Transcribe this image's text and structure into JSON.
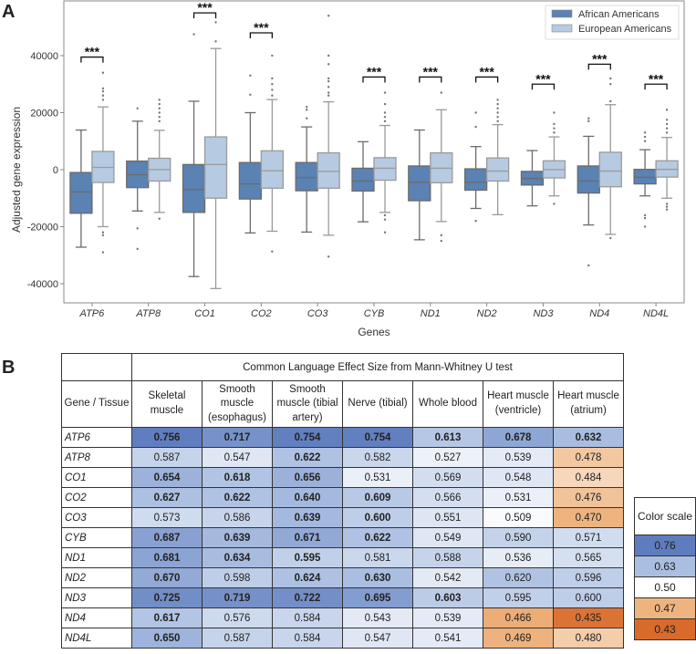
{
  "panel_a_label": "A",
  "panel_b_label": "B",
  "chart_data": {
    "type": "box",
    "xlabel": "Genes",
    "ylabel": "Adjusted gene expression",
    "ylim": [
      -46000,
      59000
    ],
    "yticks": [
      -40000,
      -20000,
      0,
      20000,
      40000
    ],
    "legend": {
      "placement": "top-right",
      "entries": [
        {
          "name": "African Americans",
          "color": "#5a82b3"
        },
        {
          "name": "European Americans",
          "color": "#b6cbe1"
        }
      ]
    },
    "significance_label": "***",
    "categories": [
      "ATP6",
      "ATP8",
      "CO1",
      "CO2",
      "CO3",
      "CYB",
      "ND1",
      "ND2",
      "ND3",
      "ND4",
      "ND4L"
    ],
    "significance_y": [
      39500,
      null,
      55000,
      48000,
      null,
      32500,
      32500,
      32500,
      30000,
      37000,
      30000
    ],
    "series": [
      {
        "name": "African Americans",
        "boxes": [
          {
            "whislo": -27200,
            "q1": -15300,
            "med": -7800,
            "q3": -1000,
            "whishi": 13900,
            "fliers": []
          },
          {
            "whislo": -14500,
            "q1": -6300,
            "med": -1800,
            "q3": 3000,
            "whishi": 17000,
            "fliers": [
              21500,
              -20600,
              -27800
            ]
          },
          {
            "whislo": -37500,
            "q1": -15000,
            "med": -7000,
            "q3": 1800,
            "whishi": 24000,
            "fliers": [
              47500
            ]
          },
          {
            "whislo": -22200,
            "q1": -10300,
            "med": -5000,
            "q3": 2500,
            "whishi": 20000,
            "fliers": [
              26300,
              33000
            ]
          },
          {
            "whislo": -21900,
            "q1": -7400,
            "med": -2800,
            "q3": 2500,
            "whishi": 15000,
            "fliers": [
              18000,
              21000,
              22000
            ]
          },
          {
            "whislo": -18300,
            "q1": -7500,
            "med": -4000,
            "q3": 500,
            "whishi": 9800,
            "fliers": []
          },
          {
            "whislo": -24600,
            "q1": -10900,
            "med": -4400,
            "q3": 1300,
            "whishi": 13900,
            "fliers": []
          },
          {
            "whislo": -13600,
            "q1": -7200,
            "med": -4400,
            "q3": 300,
            "whishi": 8100,
            "fliers": [
              15000,
              20000,
              -18000
            ]
          },
          {
            "whislo": -12700,
            "q1": -5400,
            "med": -3100,
            "q3": -600,
            "whishi": 6700,
            "fliers": []
          },
          {
            "whislo": -19400,
            "q1": -8200,
            "med": -4000,
            "q3": 1300,
            "whishi": 11700,
            "fliers": [
              17000,
              18000,
              -33600
            ]
          },
          {
            "whislo": -9200,
            "q1": -5000,
            "med": -2700,
            "q3": 100,
            "whishi": 7000,
            "fliers": [
              10000,
              11500,
              13000,
              -16000,
              -17000,
              -20000
            ]
          }
        ]
      },
      {
        "name": "European Americans",
        "boxes": [
          {
            "whislo": -20000,
            "q1": -4500,
            "med": 800,
            "q3": 6400,
            "whishi": 22000,
            "fliers": [
              24500,
              26000,
              27500,
              28500,
              34000,
              -22000,
              -23000,
              -29000
            ]
          },
          {
            "whislo": -15000,
            "q1": -4000,
            "med": 0,
            "q3": 4000,
            "whishi": 13800,
            "fliers": [
              17000,
              18500,
              20000,
              21500,
              23000,
              24500,
              -17200
            ]
          },
          {
            "whislo": -41700,
            "q1": -10000,
            "med": 1800,
            "q3": 11500,
            "whishi": 42500,
            "fliers": [
              45000,
              51700
            ]
          },
          {
            "whislo": -21600,
            "q1": -6500,
            "med": -400,
            "q3": 6600,
            "whishi": 24600,
            "fliers": [
              26000,
              28000,
              30000,
              32000,
              40000,
              -28700
            ]
          },
          {
            "whislo": -23000,
            "q1": -6500,
            "med": -600,
            "q3": 5900,
            "whishi": 23800,
            "fliers": [
              26000,
              27000,
              29000,
              31000,
              32000,
              37000,
              40000,
              54000,
              -30500
            ]
          },
          {
            "whislo": -15000,
            "q1": -3700,
            "med": 500,
            "q3": 4200,
            "whishi": 15500,
            "fliers": [
              17000,
              18500,
              20000,
              23000,
              27000,
              -16000,
              -17500,
              -22000
            ]
          },
          {
            "whislo": -18200,
            "q1": -4600,
            "med": 500,
            "q3": 5900,
            "whishi": 21000,
            "fliers": [
              27000,
              -23000,
              -25000
            ]
          },
          {
            "whislo": -15800,
            "q1": -4000,
            "med": -500,
            "q3": 4100,
            "whishi": 15800,
            "fliers": [
              17000,
              18500,
              20000,
              21500,
              23000,
              24500
            ]
          },
          {
            "whislo": -9200,
            "q1": -2900,
            "med": 0,
            "q3": 3100,
            "whishi": 11500,
            "fliers": [
              13000,
              14500,
              16000,
              20000,
              -12000
            ]
          },
          {
            "whislo": -22700,
            "q1": -6000,
            "med": -500,
            "q3": 6100,
            "whishi": 22800,
            "fliers": [
              24000,
              30000,
              32000,
              -24000
            ]
          },
          {
            "whislo": -10000,
            "q1": -2600,
            "med": 100,
            "q3": 3100,
            "whishi": 11300,
            "fliers": [
              13000,
              14500,
              16000,
              17500,
              21000,
              -12000,
              -13000,
              -14000
            ]
          }
        ]
      }
    ]
  },
  "table": {
    "corner": "Gene / Tissue",
    "title": "Common Language Effect Size from Mann-Whitney U test",
    "columns": [
      "Skeletal muscle",
      "Smooth muscle (esophagus)",
      "Smooth muscle (tibial artery)",
      "Nerve (tibial)",
      "Whole blood",
      "Heart muscle (ventricle)",
      "Heart muscle (atrium)"
    ],
    "rows": [
      {
        "gene": "ATP6",
        "values": [
          "0.756",
          "0.717",
          "0.754",
          "0.754",
          "0.613",
          "0.678",
          "0.632"
        ],
        "bold": [
          1,
          1,
          1,
          1,
          1,
          1,
          1
        ]
      },
      {
        "gene": "ATP8",
        "values": [
          "0.587",
          "0.547",
          "0.622",
          "0.582",
          "0.527",
          "0.539",
          "0.478"
        ],
        "bold": [
          0,
          0,
          1,
          0,
          0,
          0,
          0
        ]
      },
      {
        "gene": "CO1",
        "values": [
          "0.654",
          "0.618",
          "0.656",
          "0.531",
          "0.569",
          "0.548",
          "0.484"
        ],
        "bold": [
          1,
          1,
          1,
          0,
          0,
          0,
          0
        ]
      },
      {
        "gene": "CO2",
        "values": [
          "0.627",
          "0.622",
          "0.640",
          "0.609",
          "0.566",
          "0.531",
          "0.476"
        ],
        "bold": [
          1,
          1,
          1,
          1,
          0,
          0,
          0
        ]
      },
      {
        "gene": "CO3",
        "values": [
          "0.573",
          "0.586",
          "0.639",
          "0.600",
          "0.551",
          "0.509",
          "0.470"
        ],
        "bold": [
          0,
          0,
          1,
          1,
          0,
          0,
          0
        ]
      },
      {
        "gene": "CYB",
        "values": [
          "0.687",
          "0.639",
          "0.671",
          "0.622",
          "0.549",
          "0.590",
          "0.571"
        ],
        "bold": [
          1,
          1,
          1,
          1,
          0,
          0,
          0
        ]
      },
      {
        "gene": "ND1",
        "values": [
          "0.681",
          "0.634",
          "0.595",
          "0.581",
          "0.588",
          "0.536",
          "0.565"
        ],
        "bold": [
          1,
          1,
          1,
          0,
          0,
          0,
          0
        ]
      },
      {
        "gene": "ND2",
        "values": [
          "0.670",
          "0.598",
          "0.624",
          "0.630",
          "0.542",
          "0.620",
          "0.596"
        ],
        "bold": [
          1,
          0,
          1,
          1,
          0,
          0,
          0
        ]
      },
      {
        "gene": "ND3",
        "values": [
          "0.725",
          "0.719",
          "0.722",
          "0.695",
          "0.603",
          "0.595",
          "0.600"
        ],
        "bold": [
          1,
          1,
          1,
          1,
          1,
          0,
          0
        ]
      },
      {
        "gene": "ND4",
        "values": [
          "0.617",
          "0.576",
          "0.584",
          "0.543",
          "0.539",
          "0.466",
          "0.435"
        ],
        "bold": [
          1,
          0,
          0,
          0,
          0,
          0,
          0
        ]
      },
      {
        "gene": "ND4L",
        "values": [
          "0.650",
          "0.587",
          "0.584",
          "0.547",
          "0.541",
          "0.469",
          "0.480"
        ],
        "bold": [
          1,
          0,
          0,
          0,
          0,
          0,
          0
        ]
      }
    ]
  },
  "color_scale": {
    "title": "Color scale",
    "stops": [
      {
        "label": "0.76",
        "value": 0.76,
        "color": "#5e7cbe"
      },
      {
        "label": "0.63",
        "value": 0.63,
        "color": "#aabee1"
      },
      {
        "label": "0.50",
        "value": 0.5,
        "color": "#ffffff"
      },
      {
        "label": "0.47",
        "value": 0.47,
        "color": "#eeb47f"
      },
      {
        "label": "0.43",
        "value": 0.43,
        "color": "#d96a2c"
      }
    ]
  }
}
